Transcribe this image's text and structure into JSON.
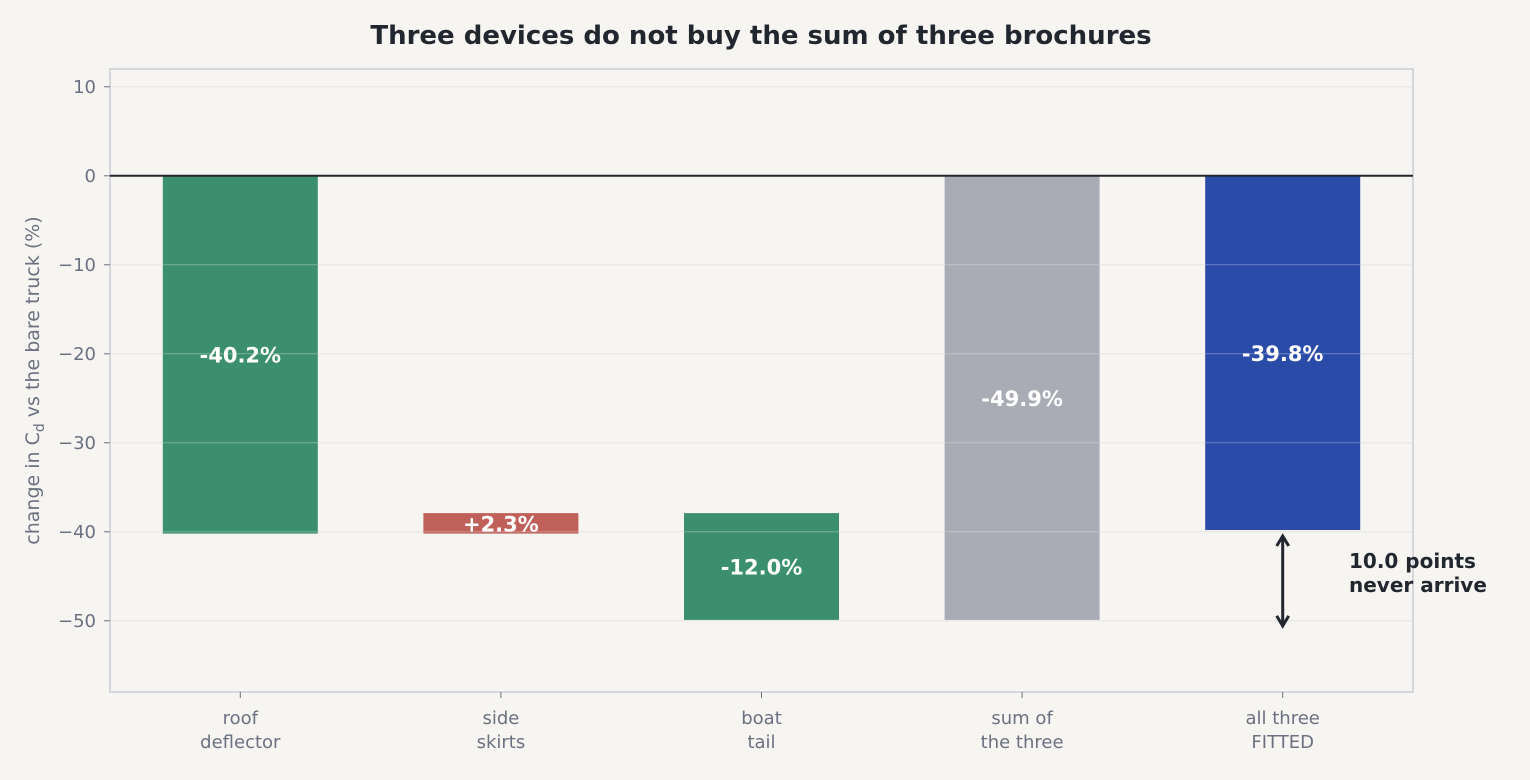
{
  "chart_data": {
    "type": "bar",
    "title": "Three devices do not buy the sum of three brochures",
    "ylabel": "change in C",
    "ylabel_subscript": "d",
    "ylabel_suffix": " vs the bare truck  (%)",
    "xlabel": "",
    "ylim": [
      -58,
      12
    ],
    "yticks": [
      10,
      0,
      -10,
      -20,
      -30,
      -40,
      -50
    ],
    "grid": true,
    "categories": [
      [
        "roof",
        "deflector"
      ],
      [
        "side",
        "skirts"
      ],
      [
        "boat",
        "tail"
      ],
      [
        "sum of",
        "the three"
      ],
      [
        "all three",
        "FITTED"
      ]
    ],
    "bars": [
      {
        "start": 0,
        "end": -40.2,
        "label": "-40.2%",
        "color": "#3c8f6e"
      },
      {
        "start": -40.2,
        "end": -37.9,
        "label": "+2.3%",
        "color": "#c0605a"
      },
      {
        "start": -37.9,
        "end": -49.9,
        "label": "-12.0%",
        "color": "#3c8f6e"
      },
      {
        "start": 0,
        "end": -49.9,
        "label": "-49.9%",
        "color": "#a9acb4"
      },
      {
        "start": 0,
        "end": -39.8,
        "label": "-39.8%",
        "color": "#2a4ba8"
      }
    ],
    "annotation": {
      "lines": [
        "10.0 points",
        "never arrive"
      ],
      "from": -39.8,
      "to": -49.9
    }
  }
}
